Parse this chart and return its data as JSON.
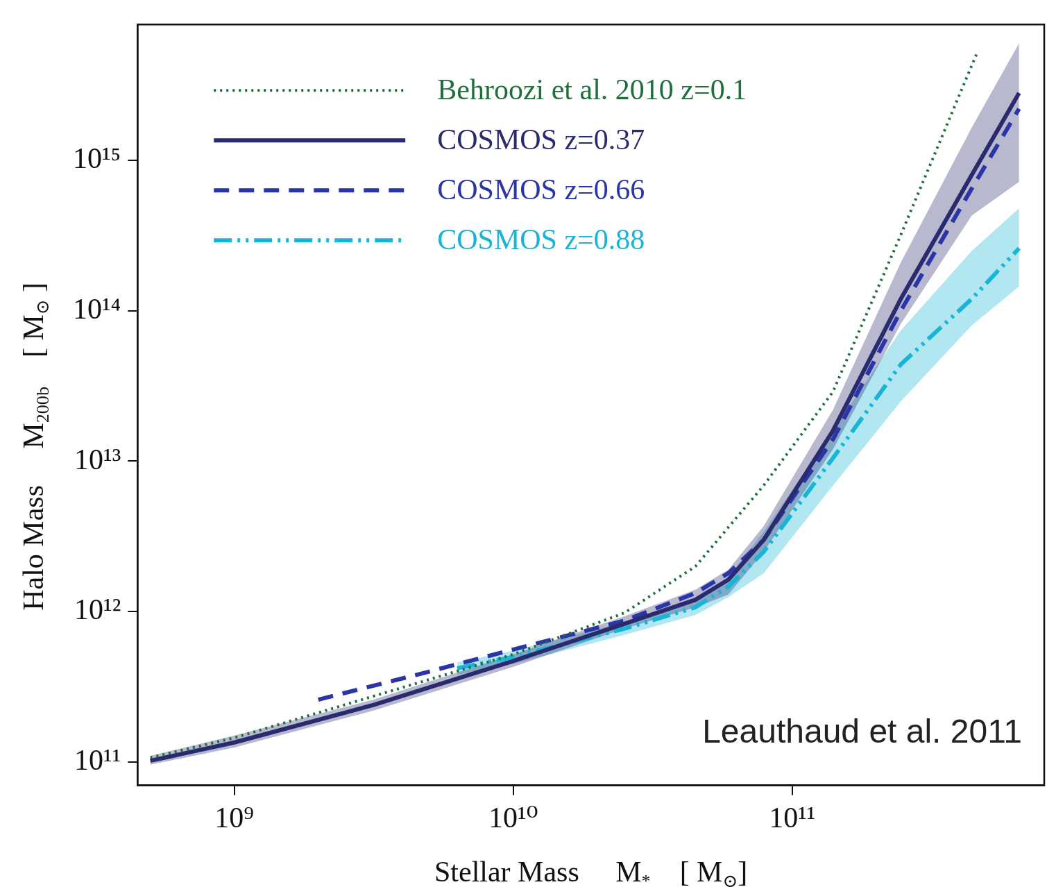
{
  "chart_data": {
    "type": "line",
    "xlabel": "Stellar Mass     M$_{*}$    [ M$_{⊙}$]",
    "ylabel": "Halo Mass     M$_{200b}$    [ M$_{⊙}$ ]",
    "log": "xy",
    "xlim": [
      450000000.0,
      800000000000.0
    ],
    "ylim": [
      70000000000.0,
      8000000000000000.0
    ],
    "xticks": [
      {
        "value": 1000000000.0,
        "label": "10⁹"
      },
      {
        "value": 10000000000.0,
        "label": "10¹⁰"
      },
      {
        "value": 100000000000.0,
        "label": "10¹¹"
      }
    ],
    "yticks": [
      {
        "value": 100000000000.0,
        "label": "10¹¹"
      },
      {
        "value": 1000000000000.0,
        "label": "10¹²"
      },
      {
        "value": 10000000000000.0,
        "label": "10¹³"
      },
      {
        "value": 100000000000000.0,
        "label": "10¹⁴"
      },
      {
        "value": 1000000000000000.0,
        "label": "10¹⁵"
      }
    ],
    "legend": "top left",
    "grid": false,
    "annotations": [
      "Leauthaud et al. 2011"
    ],
    "series": [
      {
        "name": "Behroozi et al. 2010 z=0.1",
        "color": "#1f6e3c",
        "line_style": "dotted",
        "x": [
          500000000.0,
          1000000000.0,
          10000000000.0,
          25000000000.0,
          45000000000.0,
          79000000000.0,
          140000000000.0,
          245000000000.0,
          460000000000.0
        ],
        "values": [
          107000000000.0,
          145000000000.0,
          520000000000.0,
          980000000000.0,
          2000000000000.0,
          6900000000000.0,
          29000000000000.0,
          320000000000000.0,
          5200000000000000.0
        ]
      },
      {
        "name": "COSMOS z=0.37",
        "color": "#2a2a6e",
        "line_style": "solid",
        "x": [
          500000000.0,
          1000000000.0,
          3160000000.0,
          10000000000.0,
          25000000000.0,
          45000000000.0,
          59000000000.0,
          79000000000.0,
          140000000000.0,
          245000000000.0,
          440000000000.0,
          650000000000.0
        ],
        "values": [
          102000000000.0,
          135000000000.0,
          240000000000.0,
          470000000000.0,
          830000000000.0,
          1200000000000.0,
          1630000000000.0,
          3000000000000.0,
          16000000000000.0,
          120000000000000.0,
          800000000000000.0,
          2800000000000000.0
        ],
        "lower": [
          96000000000.0,
          125000000000.0,
          220000000000.0,
          430000000000.0,
          770000000000.0,
          1070000000000.0,
          1300000000000.0,
          2500000000000.0,
          12000000000000.0,
          82000000000000.0,
          430000000000000.0,
          720000000000000.0
        ],
        "upper": [
          110000000000.0,
          150000000000.0,
          260000000000.0,
          520000000000.0,
          930000000000.0,
          1400000000000.0,
          1900000000000.0,
          3700000000000.0,
          22000000000000.0,
          210000000000000.0,
          1650000000000000.0,
          6000000000000000.0
        ]
      },
      {
        "name": "COSMOS z=0.66",
        "color": "#2a35a8",
        "line_style": "dashed",
        "x": [
          2000000000.0,
          4500000000.0,
          10000000000.0,
          25000000000.0,
          45000000000.0,
          59000000000.0,
          79000000000.0,
          140000000000.0,
          245000000000.0,
          440000000000.0,
          650000000000.0
        ],
        "values": [
          260000000000.0,
          380000000000.0,
          560000000000.0,
          870000000000.0,
          1330000000000.0,
          1800000000000.0,
          3000000000000.0,
          14000000000000.0,
          100000000000000.0,
          650000000000000.0,
          2200000000000000.0
        ]
      },
      {
        "name": "COSMOS z=0.88",
        "color": "#19b5d6",
        "line_style": "dashdotdot",
        "x": [
          6300000000.0,
          10000000000.0,
          25000000000.0,
          45000000000.0,
          59000000000.0,
          79000000000.0,
          140000000000.0,
          245000000000.0,
          440000000000.0,
          650000000000.0
        ],
        "values": [
          420000000000.0,
          500000000000.0,
          770000000000.0,
          1070000000000.0,
          1470000000000.0,
          2500000000000.0,
          10500000000000.0,
          44000000000000.0,
          120000000000000.0,
          260000000000000.0
        ],
        "lower": [
          380000000000.0,
          450000000000.0,
          700000000000.0,
          950000000000.0,
          1250000000000.0,
          1800000000000.0,
          6900000000000.0,
          25000000000000.0,
          80000000000000.0,
          145000000000000.0
        ],
        "upper": [
          460000000000.0,
          550000000000.0,
          850000000000.0,
          1200000000000.0,
          1700000000000.0,
          3400000000000.0,
          16000000000000.0,
          74000000000000.0,
          250000000000000.0,
          480000000000000.0
        ]
      }
    ]
  }
}
